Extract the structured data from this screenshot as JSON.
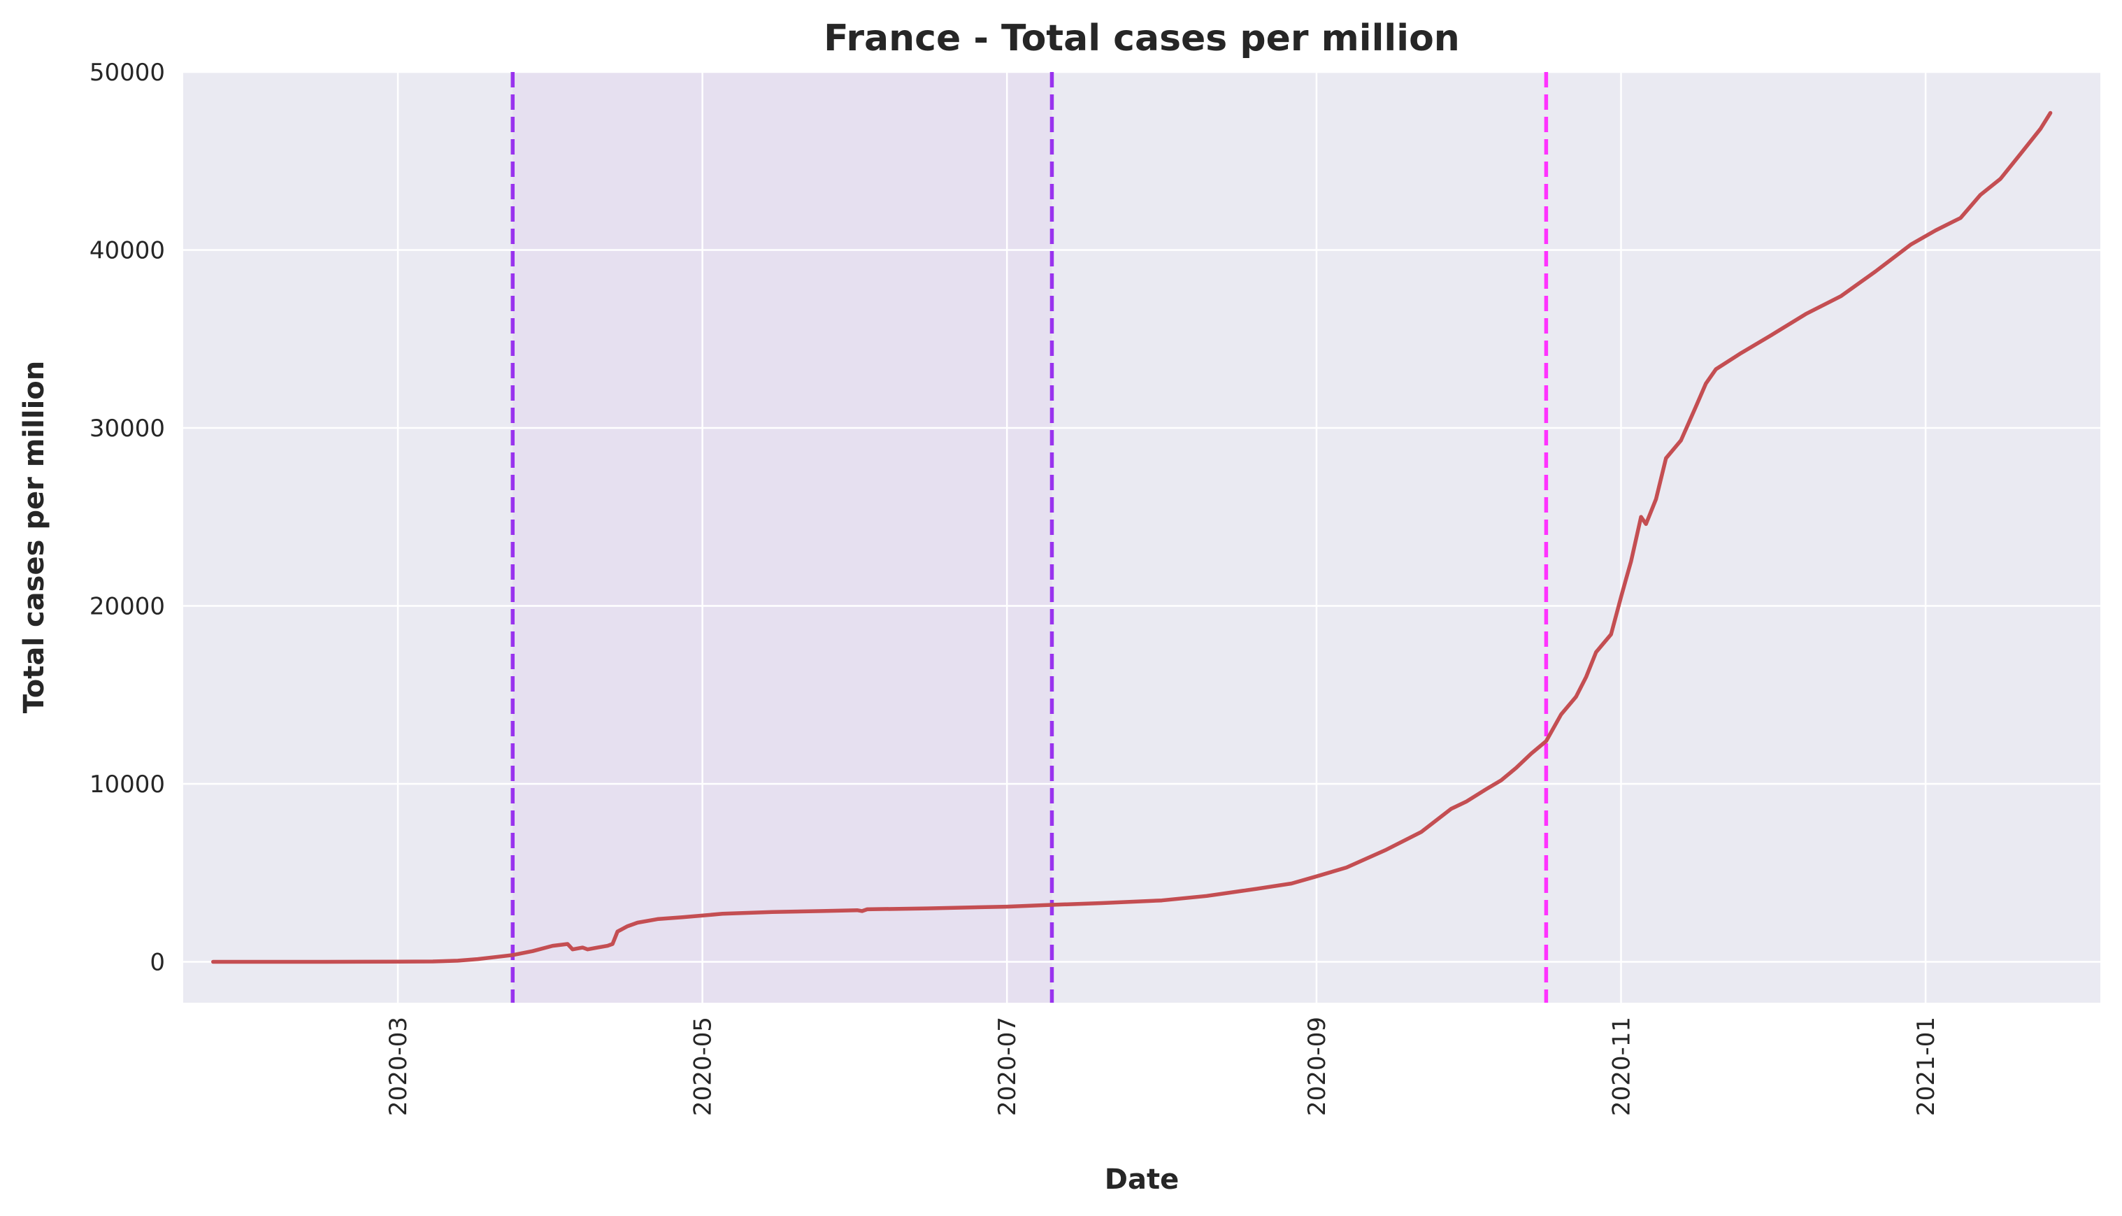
{
  "chart_data": {
    "type": "line",
    "title": "France - Total cases per million",
    "xlabel": "Date",
    "ylabel": "Total cases per million",
    "x_range": [
      "2020-01-18",
      "2021-02-05"
    ],
    "ylim": [
      -2300,
      50000
    ],
    "x_ticks": [
      "2020-03",
      "2020-05",
      "2020-07",
      "2020-09",
      "2020-11",
      "2021-01"
    ],
    "y_ticks": [
      0,
      10000,
      20000,
      30000,
      40000,
      50000
    ],
    "grid": true,
    "background_color": "#eaeaf2",
    "grid_color": "#ffffff",
    "series": [
      {
        "color": "#c44e52",
        "x": [
          "2020-01-24",
          "2020-02-15",
          "2020-03-01",
          "2020-03-08",
          "2020-03-13",
          "2020-03-17",
          "2020-03-21",
          "2020-03-24",
          "2020-03-28",
          "2020-04-01",
          "2020-04-04",
          "2020-04-05",
          "2020-04-07",
          "2020-04-08",
          "2020-04-10",
          "2020-04-12",
          "2020-04-13",
          "2020-04-14",
          "2020-04-16",
          "2020-04-18",
          "2020-04-22",
          "2020-04-27",
          "2020-05-05",
          "2020-05-15",
          "2020-05-25",
          "2020-06-01",
          "2020-06-02",
          "2020-06-03",
          "2020-06-15",
          "2020-07-01",
          "2020-07-10",
          "2020-07-20",
          "2020-08-01",
          "2020-08-10",
          "2020-08-20",
          "2020-08-27",
          "2020-09-01",
          "2020-09-07",
          "2020-09-15",
          "2020-09-22",
          "2020-09-28",
          "2020-10-01",
          "2020-10-05",
          "2020-10-08",
          "2020-10-11",
          "2020-10-14",
          "2020-10-17",
          "2020-10-20",
          "2020-10-23",
          "2020-10-25",
          "2020-10-27",
          "2020-10-30",
          "2020-11-01",
          "2020-11-02",
          "2020-11-03",
          "2020-11-05",
          "2020-11-06",
          "2020-11-08",
          "2020-11-10",
          "2020-11-13",
          "2020-11-16",
          "2020-11-18",
          "2020-11-20",
          "2020-11-25",
          "2020-12-01",
          "2020-12-08",
          "2020-12-15",
          "2020-12-22",
          "2020-12-29",
          "2021-01-03",
          "2021-01-08",
          "2021-01-12",
          "2021-01-16",
          "2021-01-20",
          "2021-01-24",
          "2021-01-26"
        ],
        "y": [
          0,
          0,
          5,
          20,
          60,
          150,
          280,
          380,
          600,
          900,
          1000,
          700,
          800,
          700,
          800,
          900,
          1000,
          1700,
          2000,
          2200,
          2400,
          2500,
          2700,
          2800,
          2850,
          2900,
          2850,
          2950,
          3000,
          3100,
          3200,
          3300,
          3450,
          3700,
          4100,
          4400,
          4800,
          5300,
          6300,
          7300,
          8600,
          9000,
          9700,
          10200,
          10900,
          11700,
          12400,
          13900,
          14900,
          16000,
          17400,
          18400,
          20500,
          21500,
          22500,
          25000,
          24600,
          26000,
          28300,
          29300,
          31200,
          32500,
          33300,
          34200,
          35200,
          36400,
          37400,
          38800,
          40300,
          41100,
          41800,
          43100,
          44000,
          45400,
          46800,
          47700
        ]
      }
    ],
    "annotations": {
      "vlines": [
        {
          "x": "2020-03-24",
          "color": "#9933ee",
          "style": "dashed"
        },
        {
          "x": "2020-07-10",
          "color": "#9933ee",
          "style": "dashed"
        },
        {
          "x": "2020-10-17",
          "color": "#ff33ff",
          "style": "dashed"
        }
      ],
      "shaded_span": {
        "x0": "2020-03-24",
        "x1": "2020-07-10",
        "color": "#e6e0f0"
      }
    }
  }
}
